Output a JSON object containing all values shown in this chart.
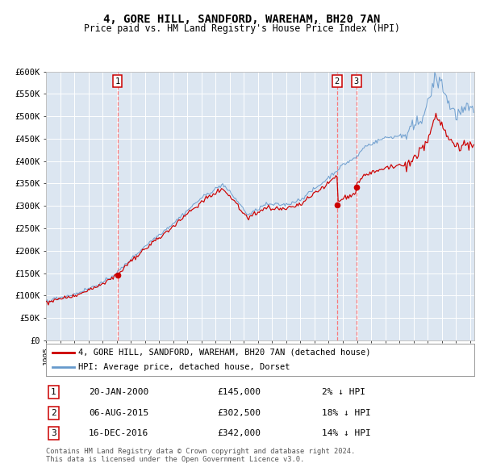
{
  "title": "4, GORE HILL, SANDFORD, WAREHAM, BH20 7AN",
  "subtitle": "Price paid vs. HM Land Registry's House Price Index (HPI)",
  "hpi_label": "HPI: Average price, detached house, Dorset",
  "property_label": "4, GORE HILL, SANDFORD, WAREHAM, BH20 7AN (detached house)",
  "sales": [
    {
      "num": 1,
      "date": "20-JAN-2000",
      "price": 145000,
      "pct": "2%",
      "direction": "↓"
    },
    {
      "num": 2,
      "date": "06-AUG-2015",
      "price": 302500,
      "pct": "18%",
      "direction": "↓"
    },
    {
      "num": 3,
      "date": "16-DEC-2016",
      "price": 342000,
      "pct": "14%",
      "direction": "↓"
    }
  ],
  "sale_dates_decimal": [
    2000.054,
    2015.587,
    2016.959
  ],
  "sale_prices": [
    145000,
    302500,
    342000
  ],
  "background_color": "#dce6f1",
  "line_color_hpi": "#6699cc",
  "line_color_property": "#cc0000",
  "marker_color": "#cc0000",
  "vline_color": "#ff6666",
  "grid_color": "#ffffff",
  "ylim": [
    0,
    600000
  ],
  "yticks": [
    0,
    50000,
    100000,
    150000,
    200000,
    250000,
    300000,
    350000,
    400000,
    450000,
    500000,
    550000,
    600000
  ],
  "xlim_start": 1995.0,
  "xlim_end": 2025.3,
  "footer": "Contains HM Land Registry data © Crown copyright and database right 2024.\nThis data is licensed under the Open Government Licence v3.0.",
  "number_box_edge": "#cc0000"
}
